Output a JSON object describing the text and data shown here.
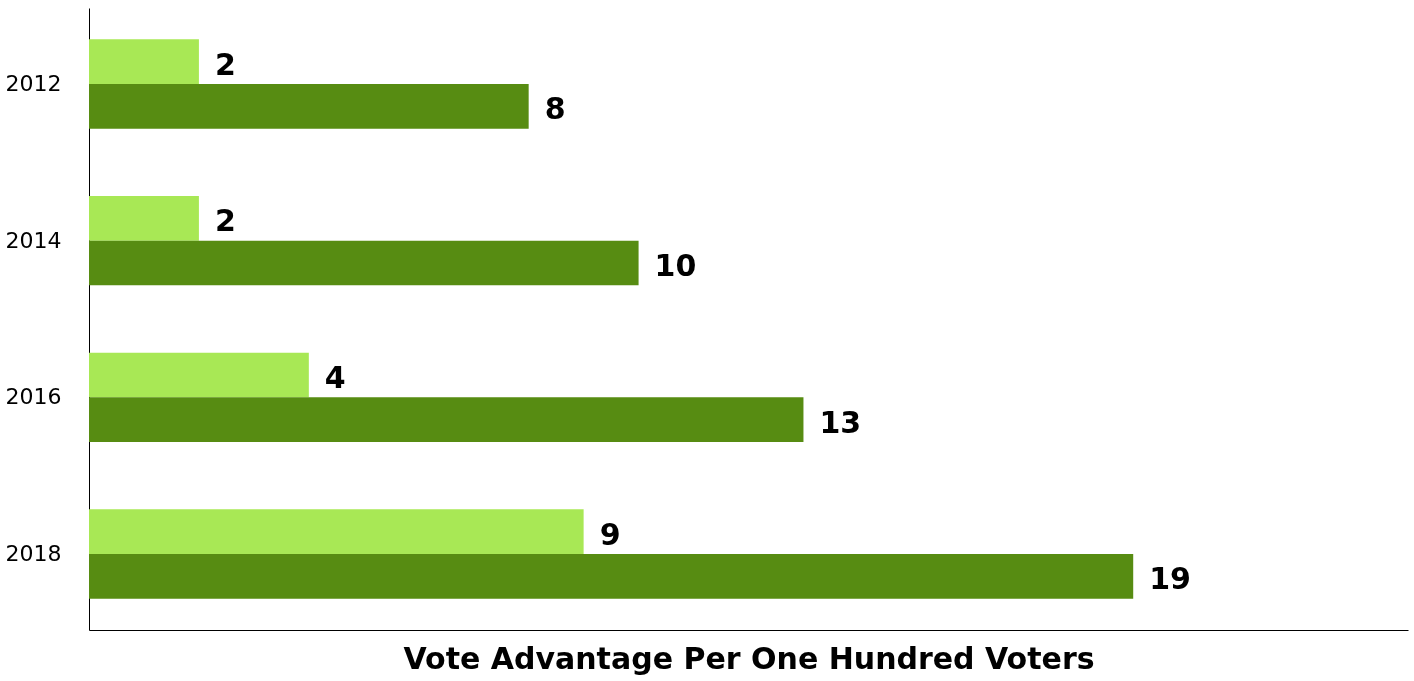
{
  "chart_data": {
    "type": "bar",
    "orientation": "horizontal",
    "xlabel": "Vote Advantage Per One Hundred Voters",
    "categories": [
      "2012",
      "2014",
      "2016",
      "2018"
    ],
    "series": [
      {
        "color": "#a8e855",
        "values": [
          2,
          2,
          4,
          9
        ]
      },
      {
        "color": "#578c12",
        "values": [
          8,
          10,
          13,
          19
        ]
      }
    ],
    "xlim": [
      0,
      24
    ],
    "data_labels": true,
    "grid": false,
    "tick_labels": "y"
  }
}
